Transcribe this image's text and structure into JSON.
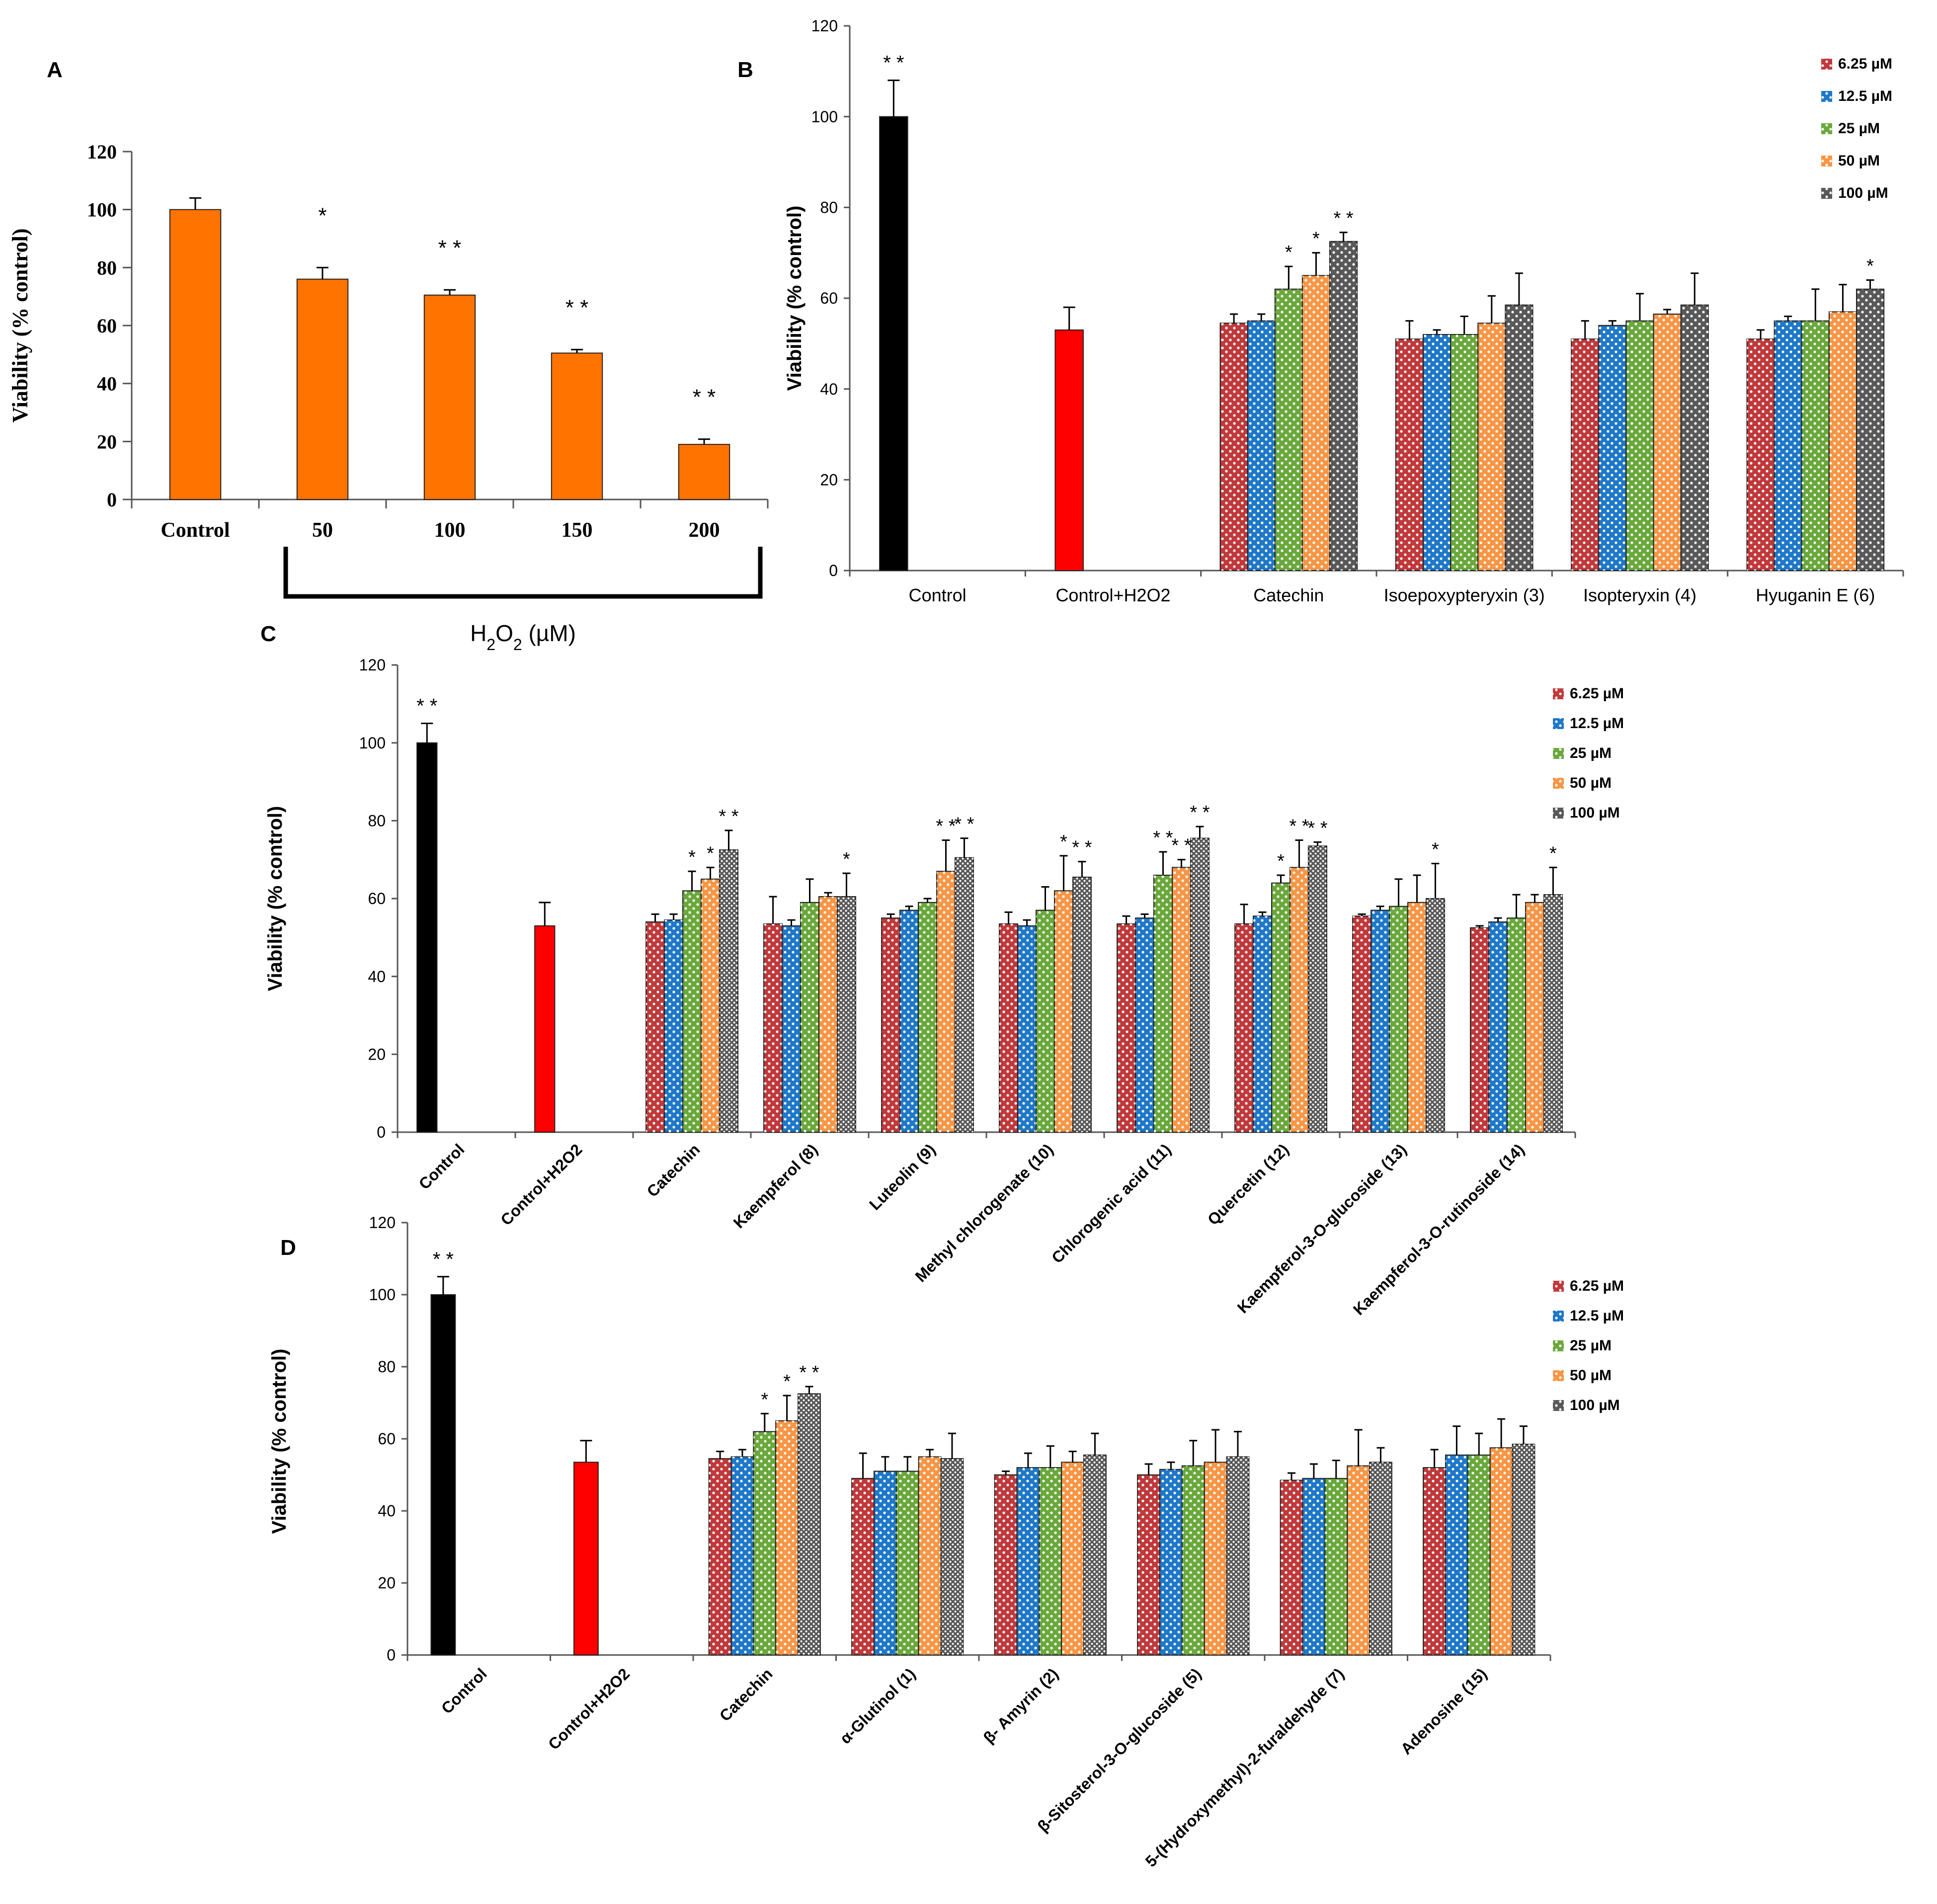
{
  "series_colors": {
    "6.25 µM": "#c0393b",
    "12.5 µM": "#1f78c8",
    "25 µM": "#6aa83c",
    "50 µM": "#f79646",
    "100 µM": "#595959"
  },
  "chart_data": [
    {
      "panel": "A",
      "type": "bar",
      "ylabel": "Viability (% control)",
      "xlabel": "H2O2 (µM)",
      "ylim": [
        0,
        120
      ],
      "yticks": [
        "0",
        "20",
        "40",
        "60",
        "80",
        "100",
        "120"
      ],
      "categories": [
        "Control",
        "50",
        "100",
        "150",
        "200"
      ],
      "values": [
        100,
        76,
        70.5,
        50.5,
        19
      ],
      "errors": [
        4,
        4,
        1.8,
        1.2,
        1.8
      ],
      "annotations": [
        "",
        "*",
        "**",
        "**",
        "**"
      ],
      "color": "#ff7300"
    },
    {
      "panel": "B",
      "type": "bar",
      "ylabel": "Viability (% control)",
      "ylim": [
        0,
        120
      ],
      "yticks": [
        "0",
        "20",
        "40",
        "60",
        "80",
        "100",
        "120"
      ],
      "legend": [
        "6.25 µM",
        "12.5 µM",
        "25 µM",
        "50 µM",
        "100 µM"
      ],
      "categories": [
        "Control",
        "Control+H2O2",
        "Catechin",
        "Isoepoxypteryxin (3)",
        "Isopteryxin (4)",
        "Hyuganin E (6)"
      ],
      "single": [
        {
          "category": "Control",
          "value": 100,
          "error": 8,
          "color": "#000000",
          "annotation": "**"
        },
        {
          "category": "Control+H2O2",
          "value": 53,
          "error": 5,
          "color": "#ff0000",
          "annotation": ""
        }
      ],
      "groups": [
        {
          "category": "Catechin",
          "values": [
            54.5,
            55,
            62,
            65,
            72.5
          ],
          "errors": [
            2,
            1.5,
            5,
            5,
            2
          ],
          "annotations": [
            "",
            "",
            "*",
            "*",
            "**"
          ]
        },
        {
          "category": "Isoepoxypteryxin (3)",
          "values": [
            51,
            52,
            52,
            54.5,
            58.5
          ],
          "errors": [
            4,
            1,
            4,
            6,
            7
          ],
          "annotations": [
            "",
            "",
            "",
            "",
            ""
          ]
        },
        {
          "category": "Isopteryxin (4)",
          "values": [
            51,
            54,
            55,
            56.5,
            58.5
          ],
          "errors": [
            4,
            1,
            6,
            1,
            7
          ],
          "annotations": [
            "",
            "",
            "",
            "",
            ""
          ]
        },
        {
          "category": "Hyuganin E (6)",
          "values": [
            51,
            55,
            55,
            57,
            62
          ],
          "errors": [
            2,
            1,
            7,
            6,
            2
          ],
          "annotations": [
            "",
            "",
            "",
            "",
            "*"
          ]
        }
      ]
    },
    {
      "panel": "C",
      "type": "bar",
      "ylabel": "Viability (% control)",
      "ylim": [
        0,
        120
      ],
      "yticks": [
        "0",
        "20",
        "40",
        "60",
        "80",
        "100",
        "120"
      ],
      "legend": [
        "6.25 µM",
        "12.5 µM",
        "25 µM",
        "50 µM",
        "100 µM"
      ],
      "categories": [
        "Control",
        "Control+H2O2",
        "Catechin",
        "Kaempferol (8)",
        "Luteolin (9)",
        "Methyl chlorogenate (10)",
        "Chlorogenic acid (11)",
        "Quercetin (12)",
        "Kaempferol-3-O-glucoside (13)",
        "Kaempferol-3-O-rutinoside (14)"
      ],
      "single": [
        {
          "category": "Control",
          "value": 100,
          "error": 5,
          "color": "#000000",
          "annotation": "**"
        },
        {
          "category": "Control+H2O2",
          "value": 53,
          "error": 6,
          "color": "#ff0000",
          "annotation": ""
        }
      ],
      "groups": [
        {
          "category": "Catechin",
          "values": [
            54,
            54.5,
            62,
            65,
            72.5
          ],
          "errors": [
            2,
            1.5,
            5,
            3,
            5
          ],
          "annotations": [
            "",
            "",
            "*",
            "*",
            "**"
          ]
        },
        {
          "category": "Kaempferol (8)",
          "values": [
            53.5,
            53,
            59,
            60.5,
            60.5
          ],
          "errors": [
            7,
            1.5,
            6,
            1,
            6
          ],
          "annotations": [
            "",
            "",
            "",
            "",
            "*"
          ]
        },
        {
          "category": "Luteolin (9)",
          "values": [
            55,
            57,
            59,
            67,
            70.5
          ],
          "errors": [
            1,
            1,
            1,
            8,
            5
          ],
          "annotations": [
            "",
            "",
            "",
            "**",
            "**"
          ]
        },
        {
          "category": "Methyl chlorogenate (10)",
          "values": [
            53.5,
            53,
            57,
            62,
            65.5
          ],
          "errors": [
            3,
            1.5,
            6,
            9,
            4
          ],
          "annotations": [
            "",
            "",
            "",
            "*",
            "**"
          ]
        },
        {
          "category": "Chlorogenic acid (11)",
          "values": [
            53.5,
            55,
            66,
            68,
            75.5
          ],
          "errors": [
            2,
            1,
            6,
            2,
            3
          ],
          "annotations": [
            "",
            "",
            "**",
            "**",
            "**"
          ]
        },
        {
          "category": "Quercetin (12)",
          "values": [
            53.5,
            55.5,
            64,
            68,
            73.5
          ],
          "errors": [
            5,
            1,
            2,
            7,
            1
          ],
          "annotations": [
            "",
            "",
            "*",
            "**",
            "**"
          ]
        },
        {
          "category": "Kaempferol-3-O-glucoside (13)",
          "values": [
            55.5,
            57,
            58,
            59,
            60
          ],
          "errors": [
            0.5,
            1,
            7,
            7,
            9
          ],
          "annotations": [
            "",
            "",
            "",
            "",
            "*"
          ]
        },
        {
          "category": "Kaempferol-3-O-rutinoside (14)",
          "values": [
            52.5,
            54,
            55,
            59,
            61
          ],
          "errors": [
            0.5,
            1,
            6,
            2,
            7
          ],
          "annotations": [
            "",
            "",
            "",
            "",
            "*"
          ]
        }
      ]
    },
    {
      "panel": "D",
      "type": "bar",
      "ylabel": "Viability (% control)",
      "ylim": [
        0,
        120
      ],
      "yticks": [
        "0",
        "20",
        "40",
        "60",
        "80",
        "100",
        "120"
      ],
      "legend": [
        "6.25 µM",
        "12.5 µM",
        "25 µM",
        "50 µM",
        "100 µM"
      ],
      "categories": [
        "Control",
        "Control+H2O2",
        "Catechin",
        "α-Glutinol (1)",
        "β- Amyrin (2)",
        "β-Sitosterol-3-O-glucoside  (5)",
        "5-(Hydroxymethyl)-2-furaldehyde (7)",
        "Adenosine (15)"
      ],
      "single": [
        {
          "category": "Control",
          "value": 100,
          "error": 5,
          "color": "#000000",
          "annotation": "**"
        },
        {
          "category": "Control+H2O2",
          "value": 53.5,
          "error": 6,
          "color": "#ff0000",
          "annotation": ""
        }
      ],
      "groups": [
        {
          "category": "Catechin",
          "values": [
            54.5,
            55,
            62,
            65,
            72.5
          ],
          "errors": [
            2,
            2,
            5,
            7,
            2
          ],
          "annotations": [
            "",
            "",
            "*",
            "*",
            "**"
          ]
        },
        {
          "category": "α-Glutinol (1)",
          "values": [
            49,
            51,
            51,
            55,
            54.5
          ],
          "errors": [
            7,
            4,
            4,
            2,
            7
          ],
          "annotations": [
            "",
            "",
            "",
            "",
            ""
          ]
        },
        {
          "category": "β- Amyrin (2)",
          "values": [
            50,
            52,
            52,
            53.5,
            55.5
          ],
          "errors": [
            1,
            4,
            6,
            3,
            6
          ],
          "annotations": [
            "",
            "",
            "",
            "",
            ""
          ]
        },
        {
          "category": "β-Sitosterol-3-O-glucoside  (5)",
          "values": [
            50,
            51.5,
            52.5,
            53.5,
            55
          ],
          "errors": [
            3,
            2,
            7,
            9,
            7
          ],
          "annotations": [
            "",
            "",
            "",
            "",
            ""
          ]
        },
        {
          "category": "5-(Hydroxymethyl)-2-furaldehyde (7)",
          "values": [
            48.5,
            49,
            49,
            52.5,
            53.5
          ],
          "errors": [
            2,
            4,
            5,
            10,
            4
          ],
          "annotations": [
            "",
            "",
            "",
            "",
            ""
          ]
        },
        {
          "category": "Adenosine (15)",
          "values": [
            52,
            55.5,
            55.5,
            57.5,
            58.5
          ],
          "errors": [
            5,
            8,
            6,
            8,
            5
          ],
          "annotations": [
            "",
            "",
            "",
            "",
            ""
          ]
        }
      ]
    }
  ]
}
